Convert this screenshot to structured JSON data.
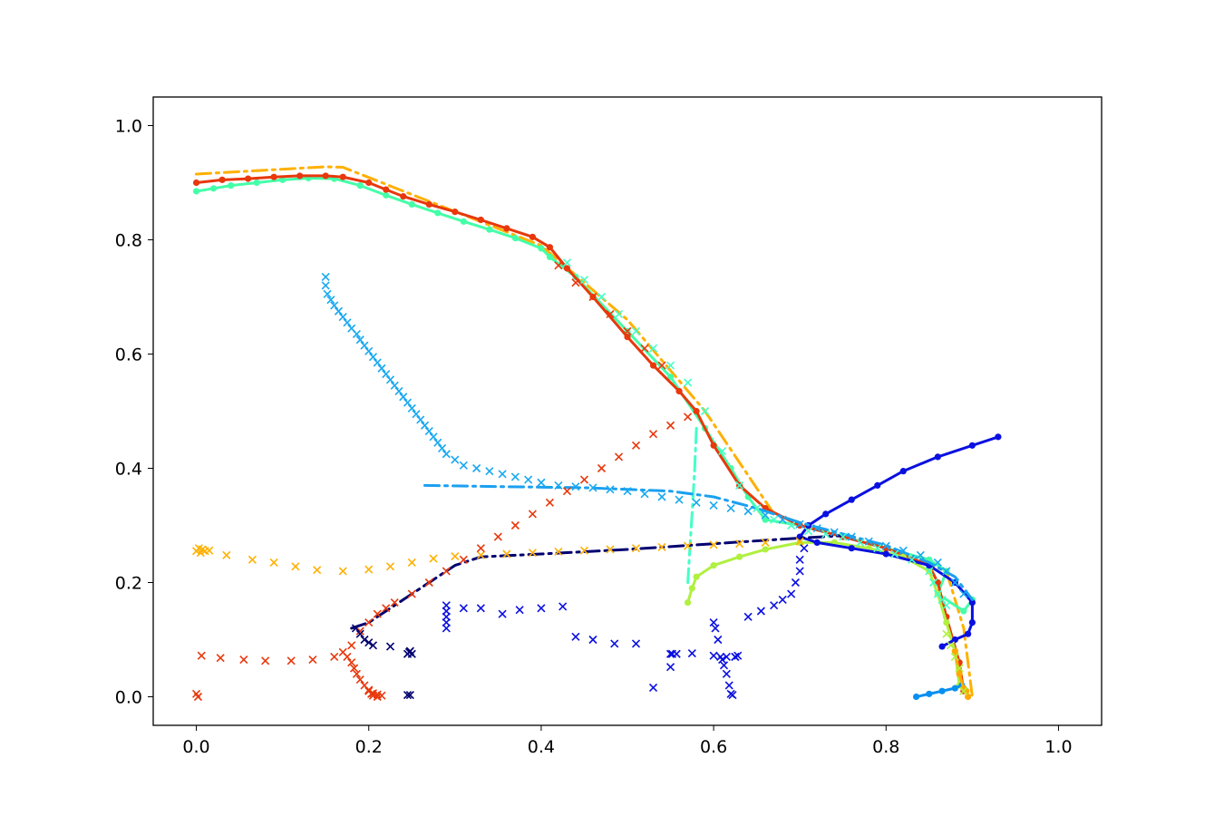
{
  "chart_data": {
    "type": "line",
    "title": "",
    "xlabel": "",
    "ylabel": "",
    "xlim": [
      -0.05,
      1.05
    ],
    "ylim": [
      -0.05,
      1.05
    ],
    "xticks": [
      0.0,
      0.2,
      0.4,
      0.6,
      0.8,
      1.0
    ],
    "yticks": [
      0.0,
      0.2,
      0.4,
      0.6,
      0.8,
      1.0
    ],
    "xtick_labels": [
      "0.0",
      "0.2",
      "0.4",
      "0.6",
      "0.8",
      "1.0"
    ],
    "ytick_labels": [
      "0.0",
      "0.2",
      "0.4",
      "0.6",
      "0.8",
      "1.0"
    ],
    "grid": false,
    "legend": "none",
    "series": [
      {
        "color": "#ffb000",
        "linestyle": "dashdot",
        "marker": "none",
        "x": [
          0.0,
          0.15,
          0.17,
          0.4,
          0.5,
          0.59,
          0.67,
          0.71,
          0.8,
          0.87,
          0.89,
          0.9
        ],
        "y": [
          0.915,
          0.928,
          0.927,
          0.79,
          0.66,
          0.5,
          0.32,
          0.3,
          0.26,
          0.22,
          0.12,
          0.0
        ]
      },
      {
        "color": "#44ffa8",
        "linestyle": "solid",
        "marker": "dot",
        "x": [
          0.0,
          0.02,
          0.04,
          0.07,
          0.1,
          0.13,
          0.16,
          0.19,
          0.22,
          0.25,
          0.28,
          0.31,
          0.34,
          0.37,
          0.4,
          0.41,
          0.44,
          0.5,
          0.55,
          0.59,
          0.62,
          0.64,
          0.66,
          0.7,
          0.75,
          0.8,
          0.85,
          0.87,
          0.86,
          0.89,
          0.9
        ],
        "y": [
          0.885,
          0.89,
          0.895,
          0.9,
          0.905,
          0.908,
          0.907,
          0.895,
          0.878,
          0.862,
          0.847,
          0.832,
          0.818,
          0.803,
          0.785,
          0.77,
          0.735,
          0.64,
          0.56,
          0.47,
          0.4,
          0.35,
          0.31,
          0.3,
          0.28,
          0.26,
          0.24,
          0.22,
          0.18,
          0.15,
          0.17
        ]
      },
      {
        "color": "#e8380c",
        "linestyle": "solid",
        "marker": "dot",
        "x": [
          0.0,
          0.03,
          0.06,
          0.09,
          0.12,
          0.15,
          0.17,
          0.2,
          0.22,
          0.24,
          0.27,
          0.3,
          0.33,
          0.36,
          0.39,
          0.41,
          0.43,
          0.46,
          0.5,
          0.53,
          0.56,
          0.58,
          0.6,
          0.63,
          0.66,
          0.7,
          0.75,
          0.8,
          0.85,
          0.86,
          0.87,
          0.885,
          0.89
        ],
        "y": [
          0.9,
          0.905,
          0.907,
          0.91,
          0.912,
          0.912,
          0.91,
          0.9,
          0.888,
          0.876,
          0.862,
          0.849,
          0.835,
          0.82,
          0.805,
          0.787,
          0.75,
          0.7,
          0.63,
          0.58,
          0.535,
          0.5,
          0.44,
          0.37,
          0.33,
          0.3,
          0.28,
          0.26,
          0.23,
          0.2,
          0.14,
          0.06,
          0.01
        ]
      },
      {
        "color": "#44ffc8",
        "linestyle": "dashdot",
        "marker": "none",
        "x": [
          0.58,
          0.578,
          0.575,
          0.572,
          0.57
        ],
        "y": [
          0.47,
          0.4,
          0.32,
          0.25,
          0.2
        ]
      },
      {
        "color": "#b0f040",
        "linestyle": "solid",
        "marker": "dot",
        "x": [
          0.57,
          0.575,
          0.58,
          0.6,
          0.63,
          0.66,
          0.7,
          0.74,
          0.78,
          0.82,
          0.85,
          0.86,
          0.87,
          0.88,
          0.885
        ],
        "y": [
          0.165,
          0.19,
          0.21,
          0.23,
          0.245,
          0.258,
          0.27,
          0.27,
          0.26,
          0.245,
          0.22,
          0.18,
          0.13,
          0.08,
          0.02
        ]
      },
      {
        "color": "#0a10e0",
        "linestyle": "solid",
        "marker": "dot",
        "x": [
          0.93,
          0.9,
          0.86,
          0.82,
          0.79,
          0.76,
          0.73,
          0.71,
          0.7,
          0.72,
          0.76,
          0.8,
          0.85,
          0.88,
          0.9,
          0.9,
          0.895,
          0.88,
          0.865
        ],
        "y": [
          0.455,
          0.44,
          0.42,
          0.395,
          0.37,
          0.345,
          0.32,
          0.3,
          0.28,
          0.27,
          0.26,
          0.25,
          0.23,
          0.2,
          0.165,
          0.13,
          0.11,
          0.1,
          0.088
        ]
      },
      {
        "color": "#000070",
        "linestyle": "dashdot",
        "marker": "none",
        "x": [
          0.18,
          0.2,
          0.22,
          0.24,
          0.26,
          0.3,
          0.33,
          0.4,
          0.5,
          0.6,
          0.7,
          0.75
        ],
        "y": [
          0.12,
          0.13,
          0.15,
          0.17,
          0.19,
          0.23,
          0.245,
          0.25,
          0.258,
          0.268,
          0.278,
          0.282
        ]
      },
      {
        "color": "#1aa0f0",
        "linestyle": "dashdot",
        "marker": "none",
        "x": [
          0.265,
          0.35,
          0.45,
          0.55,
          0.6,
          0.65,
          0.7,
          0.75,
          0.8,
          0.85,
          0.88,
          0.9
        ],
        "y": [
          0.37,
          0.368,
          0.366,
          0.36,
          0.35,
          0.33,
          0.305,
          0.285,
          0.265,
          0.235,
          0.21,
          0.17
        ]
      },
      {
        "color": "#0890f0",
        "linestyle": "solid",
        "marker": "dot",
        "x": [
          0.835,
          0.85,
          0.865,
          0.88,
          0.888
        ],
        "y": [
          0.0,
          0.005,
          0.01,
          0.015,
          0.02
        ]
      },
      {
        "color": "#ffa800",
        "linestyle": "solid",
        "marker": "dot",
        "x": [
          0.88,
          0.885,
          0.89,
          0.893,
          0.895
        ],
        "y": [
          0.08,
          0.04,
          0.015,
          0.01,
          0.0
        ]
      }
    ],
    "scatter_series": [
      {
        "color": "#18a8f0",
        "marker": "x",
        "x": [
          0.15,
          0.15,
          0.152,
          0.156,
          0.16,
          0.165,
          0.17,
          0.175,
          0.18,
          0.186,
          0.19,
          0.195,
          0.2,
          0.205,
          0.21,
          0.215,
          0.22,
          0.225,
          0.23,
          0.235,
          0.24,
          0.245,
          0.25,
          0.255,
          0.26,
          0.265,
          0.27,
          0.275,
          0.28,
          0.285,
          0.29,
          0.3,
          0.31,
          0.325,
          0.34,
          0.355,
          0.37,
          0.385,
          0.4,
          0.42,
          0.44,
          0.46,
          0.48,
          0.5,
          0.52,
          0.54,
          0.56,
          0.58,
          0.6,
          0.62,
          0.64,
          0.66,
          0.68,
          0.7,
          0.72,
          0.74,
          0.76,
          0.78,
          0.8,
          0.82,
          0.84,
          0.86,
          0.87,
          0.88,
          0.89
        ],
        "y": [
          0.735,
          0.72,
          0.705,
          0.695,
          0.685,
          0.675,
          0.665,
          0.655,
          0.645,
          0.635,
          0.625,
          0.615,
          0.605,
          0.595,
          0.585,
          0.575,
          0.565,
          0.555,
          0.545,
          0.535,
          0.525,
          0.515,
          0.505,
          0.495,
          0.485,
          0.475,
          0.465,
          0.455,
          0.445,
          0.435,
          0.425,
          0.415,
          0.405,
          0.4,
          0.395,
          0.39,
          0.385,
          0.38,
          0.375,
          0.37,
          0.368,
          0.366,
          0.363,
          0.36,
          0.355,
          0.35,
          0.345,
          0.34,
          0.335,
          0.33,
          0.325,
          0.318,
          0.31,
          0.302,
          0.295,
          0.288,
          0.28,
          0.272,
          0.264,
          0.256,
          0.248,
          0.235,
          0.22,
          0.2,
          0.18
        ]
      },
      {
        "color": "#ffb000",
        "marker": "x",
        "x": [
          0.0,
          0.003,
          0.005,
          0.007,
          0.01,
          0.015,
          0.035,
          0.065,
          0.09,
          0.115,
          0.14,
          0.17,
          0.2,
          0.225,
          0.25,
          0.275,
          0.3,
          0.33,
          0.36,
          0.39,
          0.42,
          0.45,
          0.48,
          0.51,
          0.54,
          0.57,
          0.6,
          0.63,
          0.66,
          0.7
        ],
        "y": [
          0.255,
          0.26,
          0.252,
          0.258,
          0.255,
          0.256,
          0.248,
          0.24,
          0.235,
          0.228,
          0.222,
          0.22,
          0.223,
          0.228,
          0.235,
          0.242,
          0.246,
          0.248,
          0.25,
          0.252,
          0.254,
          0.256,
          0.258,
          0.26,
          0.262,
          0.264,
          0.266,
          0.268,
          0.27,
          0.272
        ]
      },
      {
        "color": "#e8380c",
        "marker": "x",
        "x": [
          0.0,
          0.002,
          0.006,
          0.028,
          0.055,
          0.08,
          0.11,
          0.135,
          0.16,
          0.17,
          0.175,
          0.18,
          0.183,
          0.186,
          0.19,
          0.195,
          0.2,
          0.205,
          0.21,
          0.215,
          0.2,
          0.203,
          0.205,
          0.21,
          0.18,
          0.19,
          0.2,
          0.21,
          0.22,
          0.23,
          0.25,
          0.27,
          0.29,
          0.31,
          0.33,
          0.35,
          0.37,
          0.39,
          0.41,
          0.43,
          0.45,
          0.47,
          0.49,
          0.51,
          0.53,
          0.55,
          0.57
        ],
        "y": [
          0.005,
          0.0,
          0.072,
          0.068,
          0.065,
          0.063,
          0.063,
          0.065,
          0.07,
          0.078,
          0.07,
          0.06,
          0.05,
          0.04,
          0.03,
          0.02,
          0.012,
          0.006,
          0.004,
          0.002,
          0.01,
          0.005,
          0.002,
          0.0,
          0.09,
          0.115,
          0.13,
          0.145,
          0.155,
          0.165,
          0.18,
          0.2,
          0.22,
          0.24,
          0.26,
          0.28,
          0.3,
          0.32,
          0.34,
          0.36,
          0.38,
          0.4,
          0.42,
          0.44,
          0.46,
          0.475,
          0.49
        ]
      },
      {
        "color": "#0a10e0",
        "marker": "x",
        "x": [
          0.29,
          0.29,
          0.29,
          0.29,
          0.29,
          0.31,
          0.33,
          0.355,
          0.375,
          0.4,
          0.425,
          0.44,
          0.46,
          0.485,
          0.51,
          0.53,
          0.55,
          0.55,
          0.552,
          0.557,
          0.575,
          0.6,
          0.602,
          0.605,
          0.608,
          0.61,
          0.612,
          0.615,
          0.618,
          0.62,
          0.622,
          0.625,
          0.628,
          0.6,
          0.615,
          0.625,
          0.64,
          0.655,
          0.67,
          0.68,
          0.69,
          0.695,
          0.7,
          0.7,
          0.705
        ],
        "y": [
          0.12,
          0.13,
          0.14,
          0.15,
          0.16,
          0.155,
          0.155,
          0.145,
          0.152,
          0.155,
          0.158,
          0.105,
          0.1,
          0.093,
          0.093,
          0.016,
          0.052,
          0.075,
          0.075,
          0.075,
          0.076,
          0.13,
          0.12,
          0.1,
          0.07,
          0.065,
          0.055,
          0.04,
          0.02,
          0.005,
          0.003,
          0.07,
          0.072,
          0.072,
          0.07,
          0.07,
          0.14,
          0.15,
          0.16,
          0.17,
          0.18,
          0.2,
          0.22,
          0.24,
          0.26
        ]
      },
      {
        "color": "#000070",
        "marker": "x",
        "x": [
          0.245,
          0.247,
          0.248,
          0.25,
          0.245,
          0.248,
          0.185,
          0.19,
          0.195,
          0.2,
          0.205,
          0.225
        ],
        "y": [
          0.075,
          0.078,
          0.08,
          0.075,
          0.003,
          0.003,
          0.12,
          0.11,
          0.1,
          0.095,
          0.09,
          0.088
        ]
      },
      {
        "color": "#44ffc8",
        "marker": "x",
        "x": [
          0.43,
          0.45,
          0.47,
          0.49,
          0.51,
          0.53,
          0.55,
          0.57,
          0.59,
          0.61,
          0.63,
          0.65,
          0.67,
          0.69,
          0.71,
          0.73,
          0.75,
          0.77,
          0.79,
          0.81,
          0.83,
          0.85,
          0.855,
          0.86,
          0.865,
          0.87
        ],
        "y": [
          0.76,
          0.73,
          0.7,
          0.67,
          0.64,
          0.61,
          0.58,
          0.55,
          0.5,
          0.43,
          0.37,
          0.33,
          0.31,
          0.3,
          0.29,
          0.285,
          0.28,
          0.27,
          0.26,
          0.25,
          0.24,
          0.22,
          0.2,
          0.18,
          0.17,
          0.16
        ]
      },
      {
        "color": "#e8380c",
        "marker": "x",
        "x": [
          0.42,
          0.44,
          0.46,
          0.48,
          0.5,
          0.52,
          0.54
        ],
        "y": [
          0.755,
          0.725,
          0.7,
          0.67,
          0.64,
          0.61,
          0.58
        ]
      },
      {
        "color": "#b0f040",
        "marker": "x",
        "x": [
          0.87,
          0.875,
          0.88,
          0.885,
          0.89
        ],
        "y": [
          0.11,
          0.09,
          0.07,
          0.05,
          0.01
        ]
      }
    ]
  }
}
